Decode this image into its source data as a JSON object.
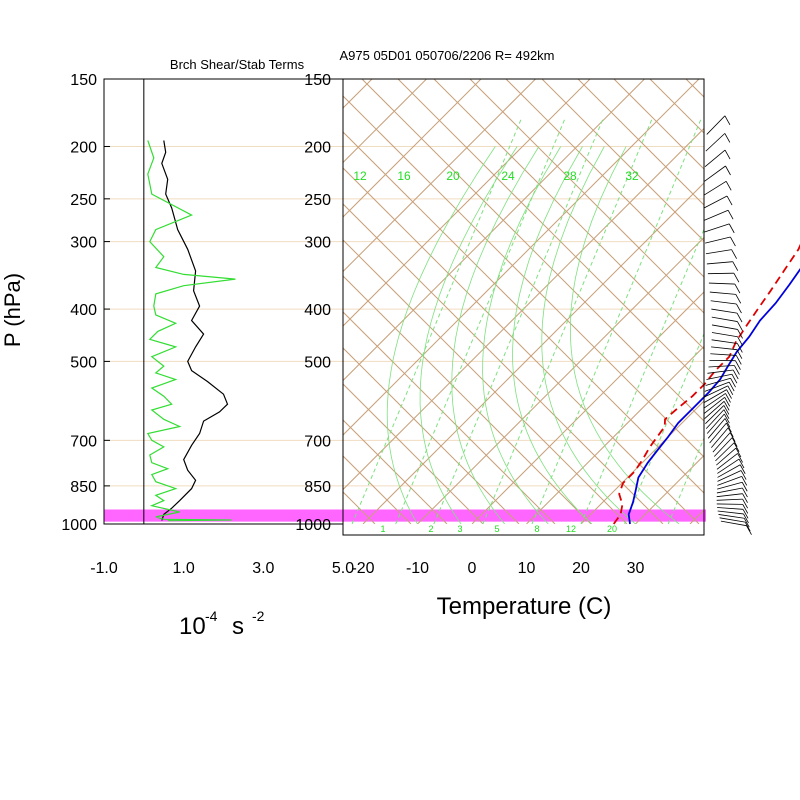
{
  "title": "A975 05D01 050706/2206 R= 492km",
  "colors": {
    "frame": "#000000",
    "isobar": "#f0dcc0",
    "skew_lines": "#c8a07a",
    "mixing_ratio": "#7ee07e",
    "label_green": "#22dd22",
    "temperature": "#0000dd",
    "dewpoint": "#dd0000",
    "highlight_band": "#ff66ff",
    "shear_line": "#000000",
    "stab_line": "#33dd33",
    "wind_barb": "#000000"
  },
  "left_panel": {
    "title": "Brch Shear/Stab Terms",
    "y_label": "P (hPa)",
    "x_unit_label": "10⁻⁴ s⁻²",
    "x_unit_base": "10",
    "x_unit_exp1": "-4",
    "x_unit_s": "s",
    "x_unit_exp2": "-2"
  },
  "right_panel": {
    "x_label": "Temperature (C)",
    "mixing_ratio_top_labels": [
      "12",
      "16",
      "20",
      "24",
      "28",
      "32"
    ],
    "mixing_ratio_bottom_labels": [
      "1",
      "2",
      "3",
      "5",
      "8",
      "12",
      "20"
    ]
  },
  "chart_data": [
    {
      "type": "line",
      "panel": "left",
      "title": "Brch Shear/Stab Terms",
      "xlabel": "10-4 s-2",
      "ylabel": "P (hPa)",
      "xlim": [
        -1.0,
        5.0
      ],
      "ylim": [
        1000,
        150
      ],
      "y_scale": "log",
      "x_ticks": [
        "-1.0",
        "1.0",
        "3.0",
        "5.0"
      ],
      "x_tick_values": [
        -1.0,
        1.0,
        3.0,
        5.0
      ],
      "y_ticks": [
        "150",
        "200",
        "250",
        "300",
        "400",
        "500",
        "700",
        "850",
        "1000"
      ],
      "y_tick_values": [
        150,
        200,
        250,
        300,
        400,
        500,
        700,
        850,
        1000
      ],
      "reference_line_x": 0,
      "series": [
        {
          "role": "shear",
          "points": [
            [
              0.5,
              195
            ],
            [
              0.55,
              205
            ],
            [
              0.45,
              215
            ],
            [
              0.6,
              230
            ],
            [
              0.55,
              245
            ],
            [
              0.7,
              260
            ],
            [
              0.85,
              285
            ],
            [
              1.1,
              310
            ],
            [
              1.3,
              340
            ],
            [
              1.25,
              370
            ],
            [
              1.4,
              395
            ],
            [
              1.2,
              420
            ],
            [
              1.5,
              445
            ],
            [
              1.3,
              470
            ],
            [
              1.1,
              500
            ],
            [
              1.2,
              520
            ],
            [
              1.6,
              545
            ],
            [
              2.0,
              575
            ],
            [
              2.1,
              600
            ],
            [
              1.9,
              620
            ],
            [
              1.5,
              645
            ],
            [
              1.4,
              680
            ],
            [
              1.2,
              715
            ],
            [
              1.0,
              760
            ],
            [
              1.1,
              795
            ],
            [
              1.3,
              830
            ],
            [
              1.2,
              860
            ],
            [
              0.9,
              905
            ],
            [
              0.7,
              935
            ],
            [
              0.5,
              960
            ],
            [
              0.45,
              985
            ]
          ]
        },
        {
          "role": "stability",
          "points": [
            [
              0.1,
              195
            ],
            [
              0.25,
              210
            ],
            [
              0.1,
              225
            ],
            [
              0.2,
              245
            ],
            [
              1.2,
              268
            ],
            [
              0.3,
              285
            ],
            [
              0.15,
              300
            ],
            [
              0.5,
              320
            ],
            [
              0.3,
              335
            ],
            [
              1.0,
              345
            ],
            [
              2.3,
              352
            ],
            [
              1.0,
              362
            ],
            [
              0.3,
              375
            ],
            [
              0.25,
              395
            ],
            [
              0.3,
              410
            ],
            [
              0.8,
              425
            ],
            [
              0.35,
              440
            ],
            [
              0.15,
              455
            ],
            [
              0.8,
              470
            ],
            [
              0.2,
              490
            ],
            [
              0.5,
              510
            ],
            [
              0.3,
              525
            ],
            [
              0.8,
              540
            ],
            [
              0.2,
              560
            ],
            [
              0.5,
              580
            ],
            [
              0.7,
              600
            ],
            [
              0.2,
              615
            ],
            [
              0.5,
              640
            ],
            [
              0.9,
              660
            ],
            [
              0.1,
              680
            ],
            [
              0.2,
              700
            ],
            [
              0.5,
              720
            ],
            [
              0.15,
              745
            ],
            [
              0.2,
              770
            ],
            [
              0.6,
              790
            ],
            [
              0.2,
              810
            ],
            [
              0.3,
              835
            ],
            [
              0.8,
              860
            ],
            [
              0.3,
              885
            ],
            [
              0.5,
              905
            ],
            [
              0.2,
              925
            ],
            [
              0.9,
              950
            ],
            [
              0.3,
              970
            ],
            [
              0.5,
              980
            ],
            [
              2.2,
              983
            ],
            [
              0.6,
              986
            ]
          ]
        }
      ]
    },
    {
      "type": "line",
      "panel": "right",
      "subtype": "skew-t",
      "title": "A975 05D01 050706/2206 R= 492km",
      "xlabel": "Temperature (C)",
      "ylabel": "P (hPa)",
      "xlim": [
        -25,
        42
      ],
      "ylim": [
        1000,
        150
      ],
      "y_scale": "log",
      "x_ticks": [
        "-20",
        "-10",
        "0",
        "10",
        "20",
        "30"
      ],
      "x_tick_values": [
        -20,
        -10,
        0,
        10,
        20,
        30
      ],
      "y_ticks": [
        "150",
        "200",
        "250",
        "300",
        "400",
        "500",
        "700",
        "850",
        "1000"
      ],
      "y_tick_values": [
        150,
        200,
        250,
        300,
        400,
        500,
        700,
        850,
        1000
      ],
      "highlight_band_hpa": [
        940,
        990
      ],
      "series": [
        {
          "role": "temperature",
          "points": [
            [
              29,
              1000
            ],
            [
              27,
              960
            ],
            [
              25.5,
              910
            ],
            [
              24,
              870
            ],
            [
              22,
              820
            ],
            [
              21,
              770
            ],
            [
              20.5,
              730
            ],
            [
              20,
              690
            ],
            [
              19.3,
              650
            ],
            [
              19.3,
              610
            ],
            [
              19.3,
              570
            ],
            [
              19,
              540
            ],
            [
              18,
              510
            ],
            [
              17,
              480
            ],
            [
              16.5,
              450
            ],
            [
              15.5,
              420
            ],
            [
              15.2,
              390
            ],
            [
              14.3,
              360
            ],
            [
              13.2,
              330
            ],
            [
              11.5,
              300
            ],
            [
              9.8,
              270
            ],
            [
              8.2,
              250
            ],
            [
              6.5,
              230
            ],
            [
              4.5,
              215
            ],
            [
              2,
              200
            ],
            [
              -2,
              185
            ]
          ]
        },
        {
          "role": "dewpoint",
          "points": [
            [
              26,
              1000
            ],
            [
              25.5,
              960
            ],
            [
              24,
              920
            ],
            [
              21.5,
              880
            ],
            [
              20.2,
              840
            ],
            [
              20.2,
              800
            ],
            [
              19.5,
              760
            ],
            [
              18.5,
              720
            ],
            [
              18,
              690
            ],
            [
              17.5,
              660
            ],
            [
              16.2,
              640
            ],
            [
              16.5,
              610
            ],
            [
              17,
              580
            ],
            [
              17,
              550
            ],
            [
              16.5,
              520
            ],
            [
              16.5,
              490
            ],
            [
              15,
              460
            ],
            [
              14,
              430
            ],
            [
              13,
              400
            ],
            [
              12,
              370
            ],
            [
              10.8,
              340
            ],
            [
              9.5,
              310
            ],
            [
              7.5,
              285
            ],
            [
              5.5,
              260
            ],
            [
              3.5,
              240
            ],
            [
              1,
              225
            ],
            [
              -3,
              212
            ],
            [
              -6,
              205
            ]
          ]
        }
      ]
    }
  ]
}
